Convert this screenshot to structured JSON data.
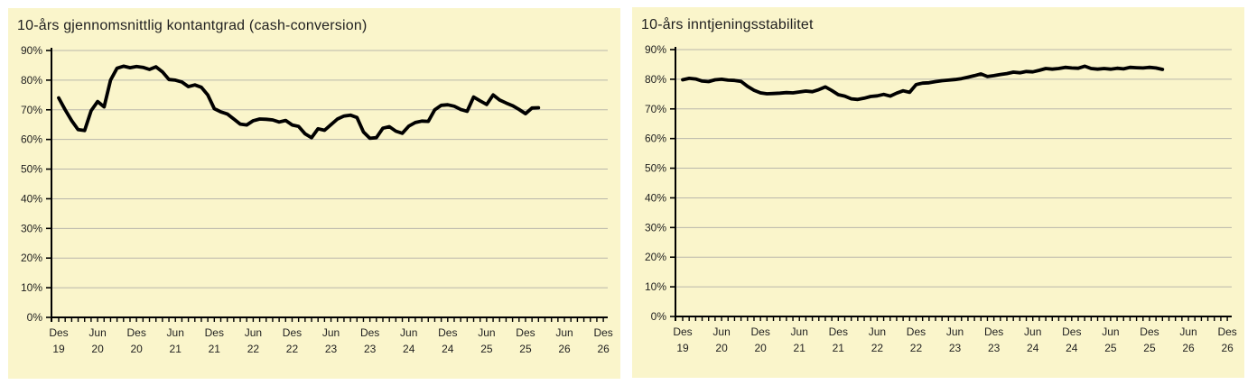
{
  "page": {
    "background": "#ffffff"
  },
  "panel": {
    "background": "#FAF5CB",
    "grid_color": "#b9b7ab",
    "axis_color": "#000000",
    "line_color": "#000000",
    "text_color": "#1f1f1f"
  },
  "chart_data": [
    {
      "type": "line",
      "title": "10-års gjennomsnittlig kontantgrad (cash-conversion)",
      "ylabel": "",
      "xlabel": "",
      "ylim": [
        0,
        90
      ],
      "grid": true,
      "legend_position": "none",
      "y_ticks": [
        "0%",
        "10%",
        "20%",
        "30%",
        "40%",
        "50%",
        "60%",
        "70%",
        "80%",
        "90%"
      ],
      "x_ticks": [
        {
          "month": "Des",
          "year": "19"
        },
        {
          "month": "Jun",
          "year": "20"
        },
        {
          "month": "Des",
          "year": "20"
        },
        {
          "month": "Jun",
          "year": "21"
        },
        {
          "month": "Des",
          "year": "21"
        },
        {
          "month": "Jun",
          "year": "22"
        },
        {
          "month": "Des",
          "year": "22"
        },
        {
          "month": "Jun",
          "year": "23"
        },
        {
          "month": "Des",
          "year": "23"
        },
        {
          "month": "Jun",
          "year": "24"
        },
        {
          "month": "Des",
          "year": "24"
        },
        {
          "month": "Jun",
          "year": "25"
        },
        {
          "month": "Des",
          "year": "25"
        },
        {
          "month": "Jun",
          "year": "26"
        },
        {
          "month": "Des",
          "year": "26"
        }
      ],
      "x_minor_tick_interval": "monthly",
      "series": [
        {
          "start_label": "Des 19",
          "interval": "monthly",
          "values": [
            74.0,
            70.0,
            66.3,
            63.3,
            63.0,
            69.7,
            72.8,
            71.0,
            80.0,
            84.0,
            84.7,
            84.2,
            84.6,
            84.3,
            83.6,
            84.5,
            82.8,
            80.2,
            80.0,
            79.4,
            77.8,
            78.4,
            77.6,
            75.0,
            70.4,
            69.3,
            68.6,
            66.9,
            65.2,
            64.9,
            66.3,
            66.9,
            66.8,
            66.6,
            65.9,
            66.4,
            64.9,
            64.4,
            61.9,
            60.6,
            63.6,
            63.1,
            65.0,
            66.9,
            67.9,
            68.2,
            67.4,
            62.5,
            60.4,
            60.6,
            63.8,
            64.3,
            62.8,
            62.1,
            64.5,
            65.7,
            66.2,
            66.1,
            70.0,
            71.5,
            71.7,
            71.2,
            70.1,
            69.5,
            74.3,
            73.0,
            71.8,
            75.0,
            73.3,
            72.3,
            71.4,
            70.1,
            68.7,
            70.6,
            70.7
          ]
        }
      ]
    },
    {
      "type": "line",
      "title": "10-års inntjeningsstabilitet",
      "ylabel": "",
      "xlabel": "",
      "ylim": [
        0,
        90
      ],
      "grid": true,
      "legend_position": "none",
      "y_ticks": [
        "0%",
        "10%",
        "20%",
        "30%",
        "40%",
        "50%",
        "60%",
        "70%",
        "80%",
        "90%"
      ],
      "x_ticks": [
        {
          "month": "Des",
          "year": "19"
        },
        {
          "month": "Jun",
          "year": "20"
        },
        {
          "month": "Des",
          "year": "20"
        },
        {
          "month": "Jun",
          "year": "21"
        },
        {
          "month": "Des",
          "year": "21"
        },
        {
          "month": "Jun",
          "year": "22"
        },
        {
          "month": "Des",
          "year": "22"
        },
        {
          "month": "Jun",
          "year": "23"
        },
        {
          "month": "Des",
          "year": "23"
        },
        {
          "month": "Jun",
          "year": "24"
        },
        {
          "month": "Des",
          "year": "24"
        },
        {
          "month": "Jun",
          "year": "25"
        },
        {
          "month": "Des",
          "year": "25"
        },
        {
          "month": "Jun",
          "year": "26"
        },
        {
          "month": "Des",
          "year": "26"
        }
      ],
      "x_minor_tick_interval": "monthly",
      "series": [
        {
          "start_label": "Des 19",
          "interval": "monthly",
          "values": [
            79.8,
            80.3,
            80.1,
            79.4,
            79.2,
            79.8,
            80.0,
            79.7,
            79.6,
            79.3,
            77.6,
            76.3,
            75.4,
            75.1,
            75.2,
            75.3,
            75.5,
            75.4,
            75.7,
            76.0,
            75.8,
            76.5,
            77.4,
            76.2,
            74.8,
            74.3,
            73.4,
            73.2,
            73.6,
            74.2,
            74.4,
            74.9,
            74.3,
            75.3,
            76.1,
            75.6,
            78.2,
            78.7,
            78.8,
            79.2,
            79.5,
            79.7,
            79.9,
            80.2,
            80.7,
            81.2,
            81.8,
            80.9,
            81.2,
            81.6,
            81.9,
            82.4,
            82.2,
            82.6,
            82.5,
            83.0,
            83.6,
            83.4,
            83.6,
            84.0,
            83.8,
            83.7,
            84.4,
            83.6,
            83.4,
            83.6,
            83.4,
            83.7,
            83.5,
            84.0,
            83.9,
            83.8,
            84.0,
            83.8,
            83.3
          ]
        }
      ]
    }
  ]
}
